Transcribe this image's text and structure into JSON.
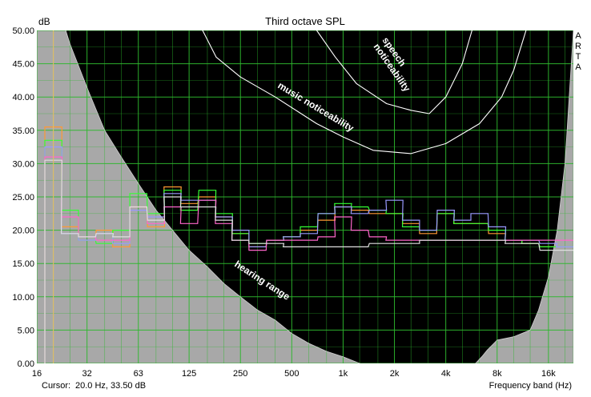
{
  "window": {
    "cursor_label": "Cursor:",
    "cursor_value": "20.0 Hz, 33.50 dB",
    "xlabel": "Frequency band (Hz)",
    "brand": [
      "A",
      "R",
      "T",
      "A"
    ]
  },
  "chart_data": {
    "type": "line",
    "title": "Third octave SPL",
    "ylabel": "dB",
    "xlabel": "Frequency band (Hz)",
    "xscale": "log",
    "xlim": [
      16,
      22400
    ],
    "ylim": [
      0,
      50
    ],
    "grid": true,
    "legend": "none",
    "y_ticks": [
      "0.00",
      "5.00",
      "10.00",
      "15.00",
      "20.00",
      "25.00",
      "30.00",
      "35.00",
      "40.00",
      "45.00",
      "50.00"
    ],
    "x_tick_labels": [
      "16",
      "32",
      "63",
      "125",
      "250",
      "500",
      "1k",
      "2k",
      "4k",
      "8k",
      "16k"
    ],
    "bands": [
      20,
      25,
      31.5,
      40,
      50,
      63,
      80,
      100,
      125,
      160,
      200,
      250,
      315,
      400,
      500,
      630,
      800,
      1000,
      1250,
      1600,
      2000,
      2500,
      3150,
      4000,
      5000,
      6300,
      8000,
      10000,
      12500,
      16000,
      20000
    ],
    "cursor": {
      "freq_hz": 20.0,
      "level_db": 33.5,
      "color": "#e8c060"
    },
    "colors": {
      "background": "#000000",
      "hearing_fill": "#a8a8a8",
      "grid": "#2eb82e",
      "curve_outline": "#ffffff",
      "annotation": "#ffffff"
    },
    "series": [
      {
        "color": "#ff9933",
        "values": [
          35.5,
          20.5,
          18.5,
          20.0,
          17.5,
          23.5,
          20.5,
          26.5,
          24.0,
          25.0,
          22.0,
          19.5,
          17.5,
          18.5,
          19.0,
          20.0,
          21.5,
          23.5,
          23.0,
          22.5,
          22.5,
          21.0,
          19.5,
          22.5,
          21.0,
          21.0,
          19.5,
          18.5,
          18.0,
          17.5,
          17.5
        ]
      },
      {
        "color": "#33ff33",
        "values": [
          33.5,
          23.0,
          18.5,
          18.0,
          20.0,
          25.5,
          22.5,
          26.0,
          23.0,
          26.0,
          22.5,
          19.5,
          18.0,
          18.5,
          19.0,
          20.5,
          22.5,
          24.0,
          23.5,
          23.0,
          22.5,
          20.5,
          20.0,
          22.5,
          21.0,
          21.0,
          20.0,
          18.5,
          18.0,
          17.5,
          17.5
        ]
      },
      {
        "color": "#9999ff",
        "values": [
          32.5,
          19.5,
          18.5,
          19.5,
          18.0,
          23.0,
          22.0,
          25.5,
          24.5,
          24.5,
          22.0,
          20.0,
          17.5,
          18.5,
          19.0,
          19.5,
          22.5,
          23.5,
          22.5,
          23.0,
          24.5,
          21.5,
          20.0,
          23.0,
          21.5,
          22.5,
          20.5,
          18.5,
          18.5,
          18.0,
          17.5
        ]
      },
      {
        "color": "#ff66cc",
        "values": [
          31.0,
          22.0,
          19.0,
          18.5,
          18.5,
          23.5,
          21.0,
          23.5,
          21.0,
          24.5,
          21.0,
          18.5,
          17.0,
          18.5,
          18.5,
          18.5,
          19.0,
          22.0,
          20.0,
          19.0,
          18.5,
          18.5,
          18.5,
          18.5,
          18.5,
          18.5,
          18.5,
          18.5,
          18.5,
          18.5,
          18.5
        ]
      },
      {
        "color": "#e0e0e0",
        "values": [
          30.5,
          19.5,
          19.0,
          19.5,
          19.0,
          23.5,
          21.5,
          25.0,
          23.5,
          23.5,
          21.5,
          18.5,
          18.0,
          18.0,
          17.5,
          17.5,
          17.5,
          17.5,
          17.5,
          18.0,
          18.0,
          18.0,
          18.5,
          18.5,
          18.5,
          18.5,
          18.5,
          18.0,
          18.0,
          17.0,
          17.0
        ]
      }
    ],
    "overlays": {
      "hearing_range": {
        "label": "hearing range",
        "lower": [
          [
            16,
            80
          ],
          [
            20,
            56
          ],
          [
            25,
            48
          ],
          [
            32,
            41
          ],
          [
            40,
            35
          ],
          [
            50,
            31
          ],
          [
            63,
            27
          ],
          [
            80,
            23
          ],
          [
            100,
            20
          ],
          [
            125,
            17
          ],
          [
            160,
            14.5
          ],
          [
            200,
            12
          ],
          [
            250,
            10
          ],
          [
            315,
            8
          ],
          [
            400,
            6.5
          ],
          [
            500,
            4.5
          ],
          [
            630,
            3
          ],
          [
            800,
            1.8
          ],
          [
            1000,
            1
          ],
          [
            1250,
            0
          ],
          [
            3000,
            -4
          ],
          [
            5500,
            -1
          ],
          [
            6500,
            1
          ],
          [
            7000,
            2
          ],
          [
            8000,
            3.5
          ],
          [
            10000,
            4
          ],
          [
            12500,
            5
          ],
          [
            14000,
            8
          ],
          [
            16000,
            13
          ],
          [
            18000,
            20
          ],
          [
            20000,
            30
          ],
          [
            22400,
            50
          ]
        ]
      },
      "music_noticeability": {
        "label": "music noticeability",
        "points": [
          [
            125,
            52
          ],
          [
            150,
            50
          ],
          [
            180,
            46
          ],
          [
            250,
            43
          ],
          [
            400,
            40
          ],
          [
            700,
            36
          ],
          [
            1000,
            34
          ],
          [
            1500,
            32
          ],
          [
            2500,
            31.5
          ],
          [
            4000,
            33
          ],
          [
            6300,
            36
          ],
          [
            8500,
            40
          ],
          [
            10000,
            44
          ],
          [
            11500,
            49
          ],
          [
            12500,
            52
          ]
        ]
      },
      "speech_noticeability": {
        "label": "speech noticeability",
        "points": [
          [
            600,
            52
          ],
          [
            700,
            50
          ],
          [
            900,
            46
          ],
          [
            1200,
            42
          ],
          [
            1800,
            39
          ],
          [
            2500,
            38
          ],
          [
            3200,
            37.5
          ],
          [
            4000,
            40
          ],
          [
            5000,
            45
          ],
          [
            6000,
            52
          ]
        ]
      }
    }
  }
}
